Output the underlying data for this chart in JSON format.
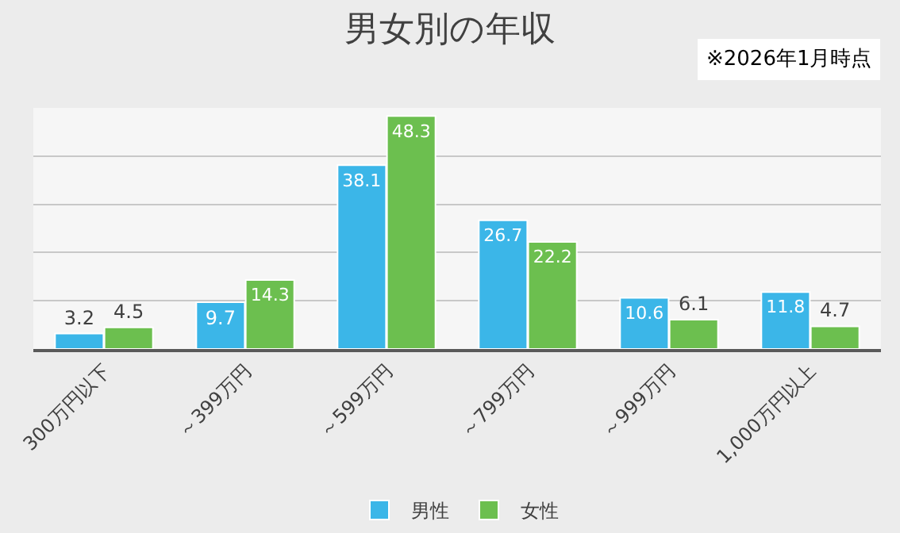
{
  "chart_data": {
    "type": "bar",
    "title": "男女別の年収",
    "annotations": [
      "※2026年1月時点"
    ],
    "categories": [
      "300万円以下",
      "～399万円",
      "～599万円",
      "～799万円",
      "～999万円",
      "1,000万円以上"
    ],
    "series": [
      {
        "name": "男性",
        "color": "#3bb6e8",
        "values": [
          3.2,
          9.7,
          38.1,
          26.7,
          10.6,
          11.8
        ]
      },
      {
        "name": "女性",
        "color": "#6cbf4f",
        "values": [
          4.5,
          14.3,
          48.3,
          22.2,
          6.1,
          4.7
        ]
      }
    ],
    "ylim": [
      0,
      50
    ],
    "yticks": [
      {
        "value": 0,
        "label": null
      },
      {
        "value": 10,
        "label": null
      },
      {
        "value": 20,
        "label": null
      },
      {
        "value": 30,
        "label": null
      },
      {
        "value": 40,
        "label": null
      },
      {
        "value": 50,
        "label": null
      }
    ],
    "tick_labels": "x",
    "grid": "y",
    "legend": "bottom",
    "data_labels": true
  }
}
